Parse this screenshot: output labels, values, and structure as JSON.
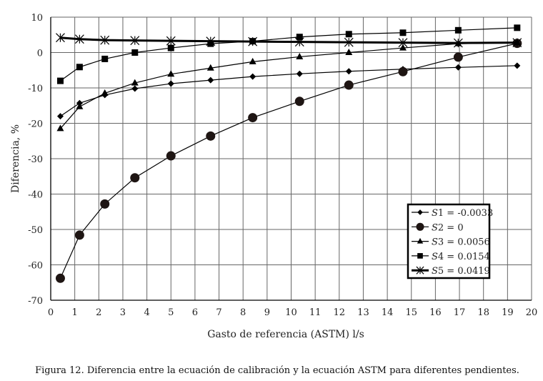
{
  "chart_data": {
    "type": "line",
    "title": "",
    "caption": "Figura 12. Diferencia entre la ecuación de calibración y la ecuación ASTM para diferentes pendientes.",
    "xlabel": "Gasto de referencia (ASTM) l/s",
    "ylabel": "Diferencia, %",
    "xlim": [
      0,
      20
    ],
    "ylim": [
      -70,
      10
    ],
    "xticks": [
      0,
      1,
      2,
      3,
      4,
      5,
      6,
      7,
      8,
      9,
      10,
      11,
      12,
      13,
      14,
      15,
      16,
      17,
      18,
      19,
      20
    ],
    "yticks": [
      10,
      0,
      -10,
      -20,
      -30,
      -40,
      -50,
      -60,
      -70
    ],
    "grid": true,
    "legend_position": "lower-right",
    "x": [
      0.4,
      1.2,
      2.25,
      3.5,
      5,
      6.65,
      8.4,
      10.35,
      12.4,
      14.65,
      16.95,
      19.4
    ],
    "series": [
      {
        "name": "S1 = -0.0033",
        "marker": "diamond",
        "values": [
          -18,
          -14.3,
          -12,
          -10.2,
          -8.8,
          -7.8,
          -6.8,
          -6,
          -5.3,
          -4.7,
          -4.2,
          -3.7
        ]
      },
      {
        "name": "S2 = 0",
        "marker": "circle",
        "values": [
          -63.8,
          -51.6,
          -42.8,
          -35.4,
          -29.2,
          -23.6,
          -18.4,
          -13.8,
          -9.2,
          -5.4,
          -1.3,
          2.6
        ]
      },
      {
        "name": "S3 = 0.0056",
        "marker": "triangle",
        "values": [
          -21.5,
          -15.3,
          -11.5,
          -8.6,
          -6.1,
          -4.4,
          -2.6,
          -1.2,
          0,
          1.3,
          2.5,
          2.8
        ]
      },
      {
        "name": "S4 = 0.0154",
        "marker": "square",
        "values": [
          -8,
          -4.1,
          -1.8,
          0,
          1.3,
          2.5,
          3.2,
          4.4,
          5.2,
          5.6,
          6.3,
          7
        ]
      },
      {
        "name": "S5 = 0.0419",
        "marker": "star",
        "values": [
          4.2,
          3.8,
          3.5,
          3.4,
          3.3,
          3.2,
          3.1,
          3.0,
          2.9,
          2.8,
          2.7,
          2.8
        ]
      }
    ]
  }
}
